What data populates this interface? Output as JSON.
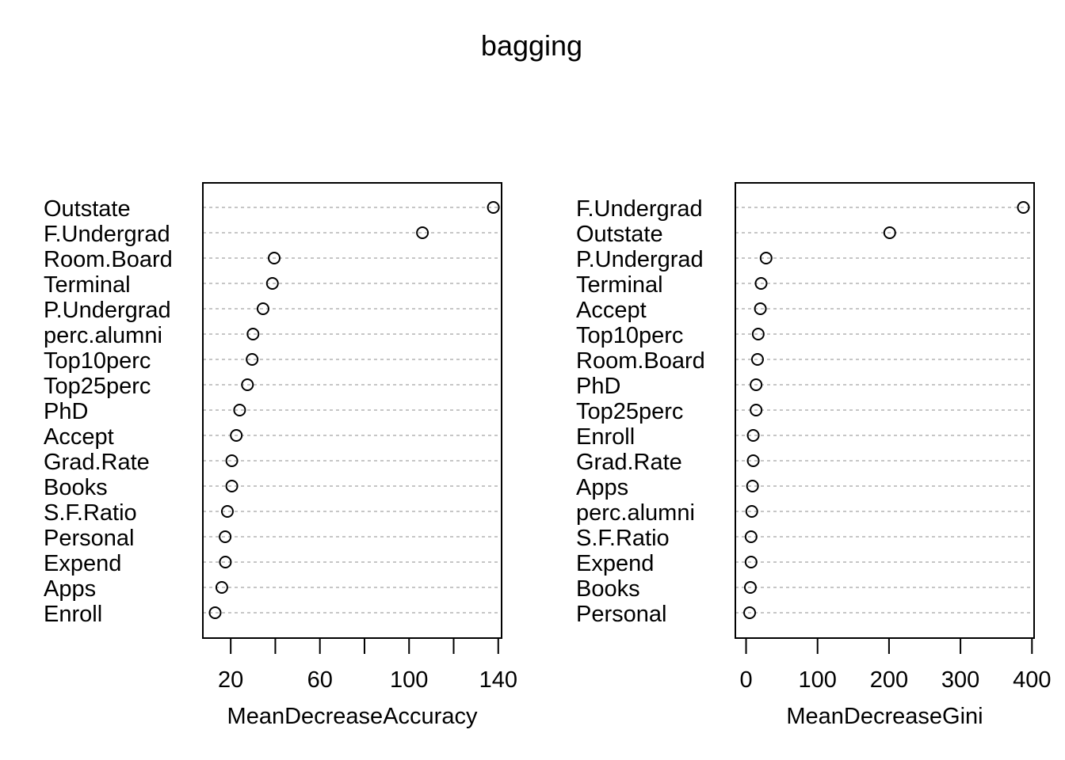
{
  "title": "bagging",
  "chart_data": [
    {
      "type": "scatter",
      "style": "dotchart",
      "xlabel": "MeanDecreaseAccuracy",
      "ylabel": "",
      "xlim": [
        7.5,
        141.5
      ],
      "xticks": [
        20,
        40,
        60,
        80,
        100,
        120,
        140
      ],
      "xtick_labels": [
        "20",
        "",
        "60",
        "",
        "100",
        "",
        "140"
      ],
      "grid": "dotted horizontal lines",
      "categories": [
        "Outstate",
        "F.Undergrad",
        "Room.Board",
        "Terminal",
        "P.Undergrad",
        "perc.alumni",
        "Top10perc",
        "Top25perc",
        "PhD",
        "Accept",
        "Grad.Rate",
        "Books",
        "S.F.Ratio",
        "Personal",
        "Expend",
        "Apps",
        "Enroll"
      ],
      "values": [
        137.8,
        106.0,
        39.5,
        38.7,
        34.5,
        30.0,
        29.6,
        27.5,
        24.0,
        22.5,
        20.5,
        20.5,
        18.5,
        17.5,
        17.6,
        16.0,
        13.0
      ]
    },
    {
      "type": "scatter",
      "style": "dotchart",
      "xlabel": "MeanDecreaseGini",
      "ylabel": "",
      "xlim": [
        -15,
        403
      ],
      "xticks": [
        0,
        100,
        200,
        300,
        400
      ],
      "xtick_labels": [
        "0",
        "100",
        "200",
        "300",
        "400"
      ],
      "grid": "dotted horizontal lines",
      "categories": [
        "F.Undergrad",
        "Outstate",
        "P.Undergrad",
        "Terminal",
        "Accept",
        "Top10perc",
        "Room.Board",
        "PhD",
        "Top25perc",
        "Enroll",
        "Grad.Rate",
        "Apps",
        "perc.alumni",
        "S.F.Ratio",
        "Expend",
        "Books",
        "Personal"
      ],
      "values": [
        388,
        201,
        28,
        21,
        20,
        17,
        16,
        14,
        14,
        10,
        10,
        9,
        8,
        7,
        7,
        6,
        5
      ]
    }
  ]
}
